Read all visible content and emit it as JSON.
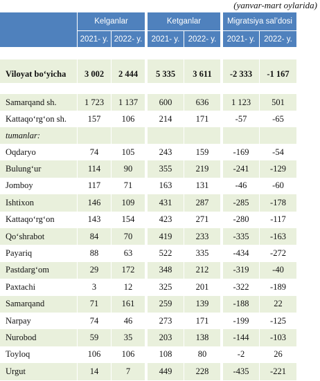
{
  "note": "(yanvar-mart oylarida)",
  "header": {
    "groups": [
      "Kelganlar",
      "Ketganlar",
      "Migratsiya sal’dosi"
    ],
    "years": [
      "2021- y.",
      "2022- y.",
      "2021- y.",
      "2022- y.",
      "2021- y.",
      "2022- y."
    ]
  },
  "rows": [
    {
      "label": "Viloyat bo‘yicha",
      "values": [
        "3 002",
        "2 444",
        "5 335",
        "3 611",
        "-2 333",
        "-1 167"
      ]
    },
    {
      "label": "Samarqand sh.",
      "values": [
        "1 723",
        "1 137",
        "600",
        "636",
        "1 123",
        "501"
      ]
    },
    {
      "label": "Kattaqo‘rg‘on sh.",
      "values": [
        "157",
        "106",
        "214",
        "171",
        "-57",
        "-65"
      ]
    },
    {
      "label": "tumanlar:"
    },
    {
      "label": "Oqdaryo",
      "values": [
        "74",
        "105",
        "243",
        "159",
        "-169",
        "-54"
      ]
    },
    {
      "label": "Bulung‘ur",
      "values": [
        "114",
        "90",
        "355",
        "219",
        "-241",
        "-129"
      ]
    },
    {
      "label": "Jomboy",
      "values": [
        "117",
        "71",
        "163",
        "131",
        "-46",
        "-60"
      ]
    },
    {
      "label": "Ishtixon",
      "values": [
        "146",
        "109",
        "431",
        "287",
        "-285",
        "-178"
      ]
    },
    {
      "label": "Kattaqo‘rg‘on",
      "values": [
        "143",
        "154",
        "423",
        "271",
        "-280",
        "-117"
      ]
    },
    {
      "label": "Qo‘shrabot",
      "values": [
        "84",
        "70",
        "419",
        "233",
        "-335",
        "-163"
      ]
    },
    {
      "label": "Payariq",
      "values": [
        "88",
        "63",
        "522",
        "335",
        "-434",
        "-272"
      ]
    },
    {
      "label": "Pastdarg‘om",
      "values": [
        "29",
        "172",
        "348",
        "212",
        "-319",
        "-40"
      ]
    },
    {
      "label": "Paxtachi",
      "values": [
        "3",
        "12",
        "325",
        "201",
        "-322",
        "-189"
      ]
    },
    {
      "label": "Samarqand",
      "values": [
        "71",
        "161",
        "259",
        "139",
        "-188",
        "22"
      ]
    },
    {
      "label": "Narpay",
      "values": [
        "74",
        "46",
        "273",
        "171",
        "-199",
        "-125"
      ]
    },
    {
      "label": "Nurobod",
      "values": [
        "59",
        "35",
        "203",
        "138",
        "-144",
        "-103"
      ]
    },
    {
      "label": "Toyloq",
      "values": [
        "106",
        "106",
        "108",
        "80",
        "-2",
        "26"
      ]
    },
    {
      "label": "Urgut",
      "values": [
        "14",
        "7",
        "449",
        "228",
        "-435",
        "-221"
      ]
    }
  ]
}
